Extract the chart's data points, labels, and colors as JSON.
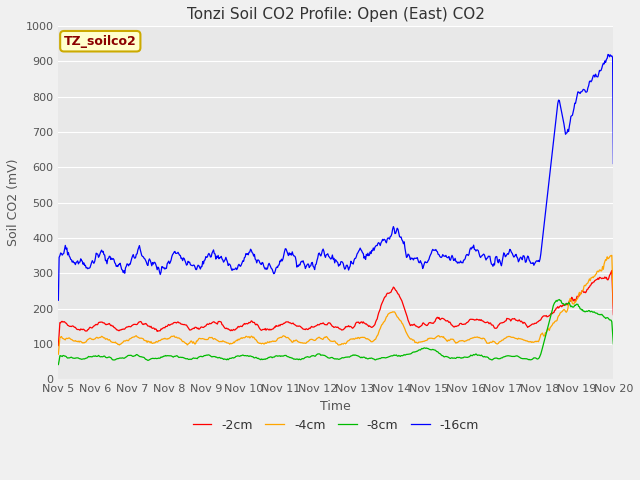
{
  "title": "Tonzi Soil CO2 Profile: Open (East) CO2",
  "ylabel": "Soil CO2 (mV)",
  "xlabel": "Time",
  "watermark": "TZ_soilco2",
  "ylim": [
    0,
    1000
  ],
  "n_days": 15,
  "x_tick_labels": [
    "Nov 5",
    "Nov 6",
    "Nov 7",
    "Nov 8",
    "Nov 9",
    "Nov 10",
    "Nov 11",
    "Nov 12",
    "Nov 13",
    "Nov 14",
    "Nov 15",
    "Nov 16",
    "Nov 17",
    "Nov 18",
    "Nov 19",
    "Nov 20"
  ],
  "colors": {
    "neg2cm": "#ff0000",
    "neg4cm": "#ffa500",
    "neg8cm": "#00bb00",
    "neg16cm": "#0000ff"
  },
  "legend_labels": [
    "-2cm",
    "-4cm",
    "-8cm",
    "-16cm"
  ],
  "fig_bg": "#f0f0f0",
  "plot_bg": "#e8e8e8",
  "grid_color": "#ffffff",
  "title_color": "#333333",
  "label_color": "#555555",
  "title_fontsize": 11,
  "label_fontsize": 9,
  "tick_fontsize": 8,
  "watermark_color": "#8B0000",
  "watermark_bg": "#ffffcc",
  "watermark_edge": "#ccaa00"
}
